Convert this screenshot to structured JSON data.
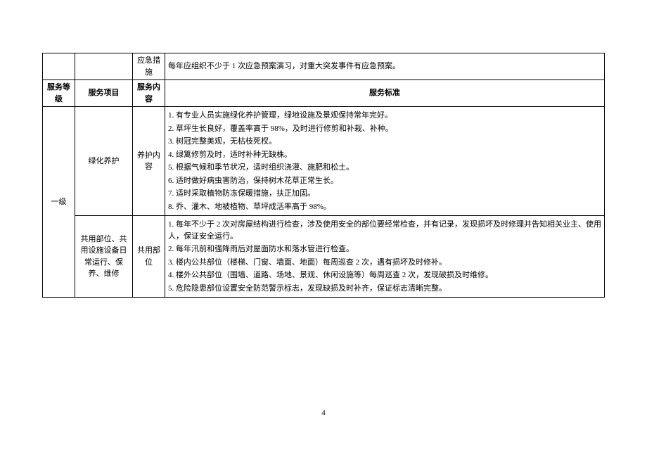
{
  "row1": {
    "col3": "应急措施",
    "col4": "每年应组织不少于 1 次应急预案演习，对重大突发事件有应急预案。"
  },
  "header": {
    "col1": "服务等级",
    "col2": "服务项目",
    "col3": "服务内容",
    "col4": "服务标准"
  },
  "level": "一级",
  "greening": {
    "project": "绿化养护",
    "content": "养护内容",
    "items": [
      "1. 有专业人员实施绿化养护管理，绿地设施及景观保持常年完好。",
      "2. 草坪生长良好，覆盖率高于 98%，及时进行修剪和补栽、补种。",
      "3. 树冠完整美观，无枯枝死杈。",
      "4. 绿篱修剪及时，适时补种无缺株。",
      "5. 根据气候和季节状况，适时组织浇灌、施肥和松土。",
      "6. 适时做好病虫害防治，保持树木花草正常生长。",
      "7. 适时采取植物防冻保暖措施，扶正加固。",
      "8. 乔、灌木、地被植物、草坪成活率高于 98%。"
    ]
  },
  "common": {
    "project": "共用部位、共用设施设备日常运行、保养、维修",
    "content": "共用部位",
    "items": [
      "1. 每年不少于 2 次对房屋结构进行检查，涉及使用安全的部位要经常检查，并有记录，发现损坏及时修理并告知相关业主、使用人，保证安全运行。",
      "2. 每年汛前和强降雨后对屋面防水和落水管进行检查。",
      "3. 楼内公共部位（楼梯、门窗、墙面、地面）每周巡查 2 次，遇有损坏及时修补。",
      "4. 楼外公共部位（围墙、道路、场地、景观、休闲设施等）每周巡查 2 次，发现破损及时维修。",
      "5. 危险隐患部位设置安全防范警示标志，发现缺损及时补齐，保证标志清晰完整。"
    ]
  },
  "pageNumber": "4"
}
